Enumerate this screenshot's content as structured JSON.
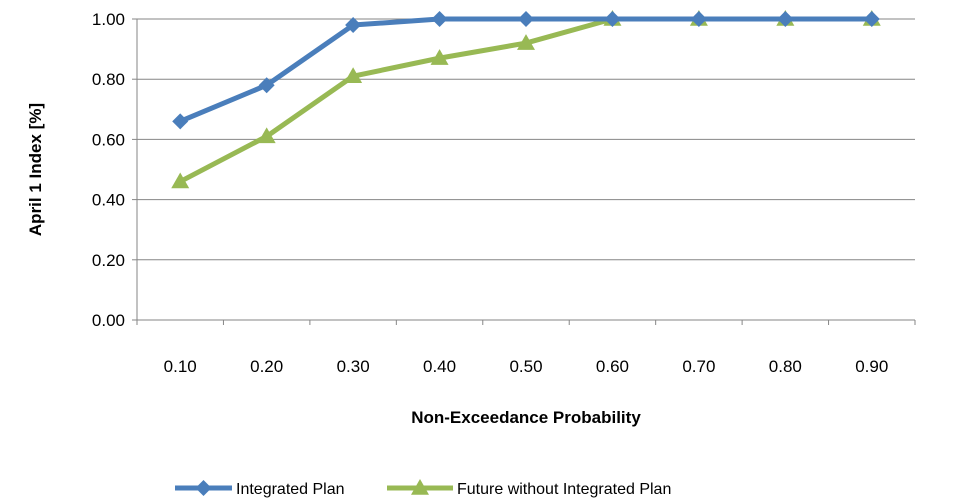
{
  "chart_data": {
    "type": "line",
    "xlabel": "Non-Exceedance Probability",
    "ylabel": "April 1 Index [%]",
    "x_tick_labels": [
      "0.10",
      "0.20",
      "0.30",
      "0.40",
      "0.50",
      "0.60",
      "0.70",
      "0.80",
      "0.90"
    ],
    "y_tick_labels": [
      "0.00",
      "0.20",
      "0.40",
      "0.60",
      "0.80",
      "1.00"
    ],
    "x": [
      0.1,
      0.2,
      0.3,
      0.4,
      0.5,
      0.6,
      0.7,
      0.8,
      0.9
    ],
    "ylim": [
      0,
      1
    ],
    "grid": true,
    "legend_position": "bottom",
    "series": [
      {
        "name": "Integrated Plan",
        "color": "#4a7ebb",
        "marker": "diamond",
        "values": [
          0.66,
          0.78,
          0.98,
          1.0,
          1.0,
          1.0,
          1.0,
          1.0,
          1.0
        ]
      },
      {
        "name": "Future without Integrated Plan",
        "color": "#98b954",
        "marker": "triangle",
        "values": [
          0.46,
          0.61,
          0.81,
          0.87,
          0.92,
          1.0,
          1.0,
          1.0,
          1.0
        ]
      }
    ]
  }
}
